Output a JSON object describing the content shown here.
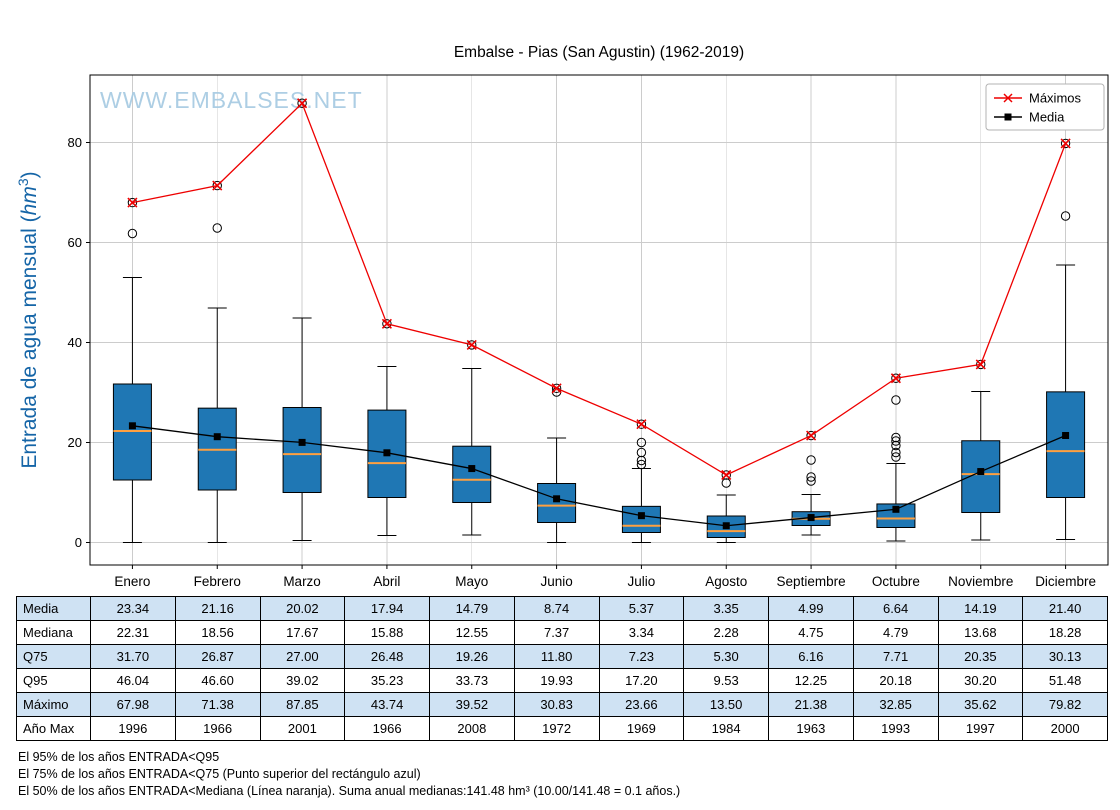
{
  "page": {
    "watermark": "WWW.EMBALSES.NET"
  },
  "chart_data": {
    "type": "boxplot",
    "title": "Embalse - Pias (San Agustin) (1962-2019)",
    "ylabel": "Entrada de agua mensual (hm³)",
    "ylim": [
      -4.5,
      93.5
    ],
    "yticks": [
      0,
      20,
      40,
      60,
      80
    ],
    "grid": true,
    "categories": [
      "Enero",
      "Febrero",
      "Marzo",
      "Abril",
      "Mayo",
      "Junio",
      "Julio",
      "Agosto",
      "Septiembre",
      "Octubre",
      "Noviembre",
      "Diciembre"
    ],
    "series": [
      {
        "name": "Máximos",
        "marker": "x",
        "color": "#ee0000",
        "values": [
          67.98,
          71.38,
          87.85,
          43.74,
          39.52,
          30.83,
          23.66,
          13.5,
          21.38,
          32.85,
          35.62,
          79.82
        ]
      },
      {
        "name": "Media",
        "marker": "square",
        "color": "#000000",
        "values": [
          23.34,
          21.16,
          20.02,
          17.94,
          14.79,
          8.74,
          5.37,
          3.35,
          4.99,
          6.64,
          14.19,
          21.4
        ]
      }
    ],
    "boxes": [
      {
        "q1": 12.5,
        "median": 22.31,
        "q3": 31.7,
        "whisker_low": 0.0,
        "whisker_high": 53.0,
        "outliers": [
          61.8,
          67.98
        ]
      },
      {
        "q1": 10.5,
        "median": 18.56,
        "q3": 26.87,
        "whisker_low": 0.0,
        "whisker_high": 46.9,
        "outliers": [
          62.9,
          71.38
        ]
      },
      {
        "q1": 10.0,
        "median": 17.67,
        "q3": 27.0,
        "whisker_low": 0.4,
        "whisker_high": 44.9,
        "outliers": [
          87.85
        ]
      },
      {
        "q1": 9.0,
        "median": 15.88,
        "q3": 26.48,
        "whisker_low": 1.4,
        "whisker_high": 35.2,
        "outliers": [
          43.74
        ]
      },
      {
        "q1": 8.0,
        "median": 12.55,
        "q3": 19.26,
        "whisker_low": 1.5,
        "whisker_high": 34.8,
        "outliers": [
          39.52
        ]
      },
      {
        "q1": 4.0,
        "median": 7.37,
        "q3": 11.8,
        "whisker_low": 0.0,
        "whisker_high": 20.9,
        "outliers": [
          30.1,
          30.83
        ]
      },
      {
        "q1": 2.0,
        "median": 3.34,
        "q3": 7.23,
        "whisker_low": 0.0,
        "whisker_high": 14.8,
        "outliers": [
          15.6,
          16.4,
          18.0,
          20.0,
          23.66
        ]
      },
      {
        "q1": 1.0,
        "median": 2.28,
        "q3": 5.3,
        "whisker_low": 0.0,
        "whisker_high": 9.5,
        "outliers": [
          11.9,
          13.5
        ]
      },
      {
        "q1": 3.4,
        "median": 4.75,
        "q3": 6.16,
        "whisker_low": 1.5,
        "whisker_high": 9.6,
        "outliers": [
          12.3,
          13.1,
          16.5,
          21.38
        ]
      },
      {
        "q1": 3.0,
        "median": 4.79,
        "q3": 7.71,
        "whisker_low": 0.3,
        "whisker_high": 15.8,
        "outliers": [
          17.1,
          18.0,
          19.4,
          20.3,
          21.0,
          28.5,
          32.85
        ]
      },
      {
        "q1": 6.0,
        "median": 13.68,
        "q3": 20.35,
        "whisker_low": 0.5,
        "whisker_high": 30.2,
        "outliers": [
          35.62
        ]
      },
      {
        "q1": 9.0,
        "median": 18.28,
        "q3": 30.13,
        "whisker_low": 0.6,
        "whisker_high": 55.5,
        "outliers": [
          65.3,
          79.82
        ]
      }
    ],
    "legend": {
      "position": "top-right",
      "entries": [
        {
          "label": "Máximos",
          "marker": "x",
          "color": "#ee0000"
        },
        {
          "label": "Media",
          "marker": "square",
          "color": "#000000"
        }
      ]
    },
    "colors": {
      "box_fill": "#1f77b4",
      "box_edge": "#000000",
      "median_line": "#ffa040",
      "max_line": "#ee0000",
      "mean_line": "#000000",
      "grid": "#cccccc",
      "watermark": "#a9cce3",
      "ylabel": "#1565a7",
      "shaded_row": "#cfe2f3"
    }
  },
  "table": {
    "rows": [
      {
        "label": "Media",
        "values": [
          "23.34",
          "21.16",
          "20.02",
          "17.94",
          "14.79",
          "8.74",
          "5.37",
          "3.35",
          "4.99",
          "6.64",
          "14.19",
          "21.40"
        ]
      },
      {
        "label": "Mediana",
        "values": [
          "22.31",
          "18.56",
          "17.67",
          "15.88",
          "12.55",
          "7.37",
          "3.34",
          "2.28",
          "4.75",
          "4.79",
          "13.68",
          "18.28"
        ]
      },
      {
        "label": "Q75",
        "values": [
          "31.70",
          "26.87",
          "27.00",
          "26.48",
          "19.26",
          "11.80",
          "7.23",
          "5.30",
          "6.16",
          "7.71",
          "20.35",
          "30.13"
        ]
      },
      {
        "label": "Q95",
        "values": [
          "46.04",
          "46.60",
          "39.02",
          "35.23",
          "33.73",
          "19.93",
          "17.20",
          "9.53",
          "12.25",
          "20.18",
          "30.20",
          "51.48"
        ]
      },
      {
        "label": "Máximo",
        "values": [
          "67.98",
          "71.38",
          "87.85",
          "43.74",
          "39.52",
          "30.83",
          "23.66",
          "13.50",
          "21.38",
          "32.85",
          "35.62",
          "79.82"
        ]
      },
      {
        "label": "Año Max",
        "values": [
          "1996",
          "1966",
          "2001",
          "1966",
          "2008",
          "1972",
          "1969",
          "1984",
          "1963",
          "1993",
          "1997",
          "2000"
        ]
      }
    ]
  },
  "footnotes": [
    "El 95% de los años ENTRADA<Q95",
    "El 75% de los años ENTRADA<Q75 (Punto superior del rectángulo azul)",
    "El 50% de los años ENTRADA<Mediana (Línea naranja). Suma anual medianas:141.48 hm³ (10.00/141.48 = 0.1 años.)"
  ]
}
